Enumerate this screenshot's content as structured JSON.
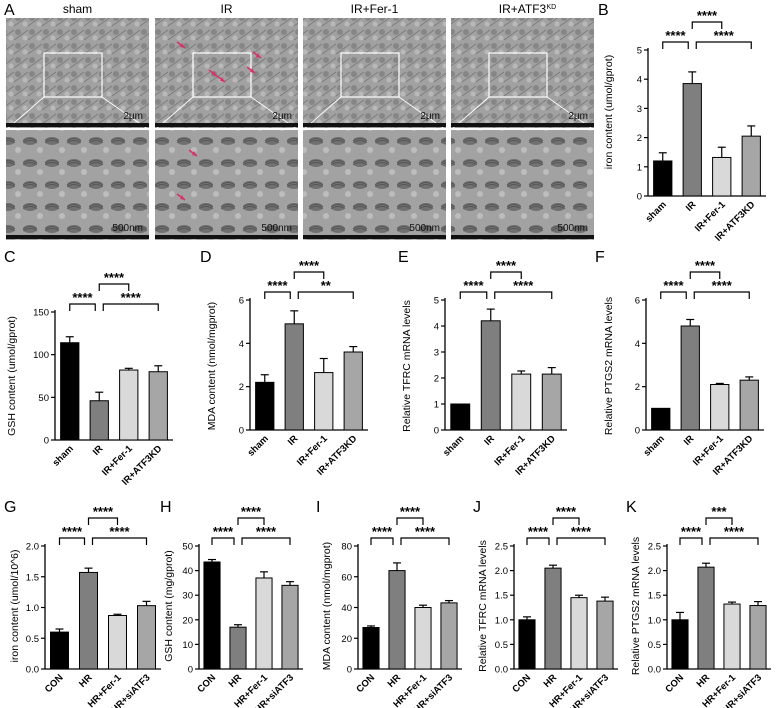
{
  "tem": {
    "groups": [
      "sham",
      "IR",
      "IR+Fer-1",
      "IR+ATF3"
    ],
    "group_superscript": "KD",
    "top_scale": [
      "2μm",
      "2μm",
      "2μm",
      "2μm"
    ],
    "bottom_scale": [
      "500nm",
      "500nm",
      "500nm",
      "500nm"
    ],
    "arrow_color": "#d6336c"
  },
  "colors": {
    "black": "#000000",
    "dark_gray": "#7f7f7f",
    "light_gray": "#d9d9d9",
    "mid_gray": "#a6a6a6"
  },
  "chart_data": [
    {
      "panel": "B",
      "type": "bar",
      "categories": [
        "sham",
        "IR",
        "IR+Fer-1",
        "IR+ATF3KD"
      ],
      "values": [
        1.2,
        3.85,
        1.32,
        2.05
      ],
      "errors": [
        0.28,
        0.4,
        0.35,
        0.35
      ],
      "ylabel": "iron content (umol/gprot)",
      "ylim": [
        0,
        5
      ],
      "yticks": [
        "0",
        "1",
        "2",
        "3",
        "4",
        "5"
      ],
      "sig": [
        {
          "from": 1,
          "to": 2,
          "label": "****"
        },
        {
          "from": 0,
          "to": 1,
          "label": "****"
        },
        {
          "from": 1,
          "to": 3,
          "label": "****"
        }
      ]
    },
    {
      "panel": "C",
      "type": "bar",
      "categories": [
        "sham",
        "IR",
        "IR+Fer-1",
        "IR+ATF3KD"
      ],
      "values": [
        114,
        46,
        82,
        80
      ],
      "errors": [
        7,
        10,
        2,
        7
      ],
      "ylabel": "GSH content (umol/gprot)",
      "ylim": [
        0,
        150
      ],
      "yticks": [
        "0",
        "50",
        "100",
        "150"
      ],
      "sig": [
        {
          "from": 1,
          "to": 2,
          "label": "****"
        },
        {
          "from": 0,
          "to": 1,
          "label": "****"
        },
        {
          "from": 1,
          "to": 3,
          "label": "****"
        }
      ]
    },
    {
      "panel": "D",
      "type": "bar",
      "categories": [
        "sham",
        "IR",
        "IR+Fer-1",
        "IR+ATF3KD"
      ],
      "values": [
        2.2,
        4.9,
        2.65,
        3.6
      ],
      "errors": [
        0.35,
        0.6,
        0.65,
        0.25
      ],
      "ylabel": "MDA content (nmol/mgprot)",
      "ylim": [
        0,
        6
      ],
      "yticks": [
        "0",
        "2",
        "4",
        "6"
      ],
      "sig": [
        {
          "from": 1,
          "to": 2,
          "label": "****"
        },
        {
          "from": 0,
          "to": 1,
          "label": "****"
        },
        {
          "from": 1,
          "to": 3,
          "label": "**"
        }
      ]
    },
    {
      "panel": "E",
      "type": "bar",
      "categories": [
        "sham",
        "IR",
        "IR+Fer-1",
        "IR+ATF3KD"
      ],
      "values": [
        1.0,
        4.2,
        2.15,
        2.15
      ],
      "errors": [
        0.0,
        0.45,
        0.12,
        0.25
      ],
      "ylabel": "Relative TFRC mRNA levels",
      "ylim": [
        0,
        5
      ],
      "yticks": [
        "0",
        "1",
        "2",
        "3",
        "4",
        "5"
      ],
      "sig": [
        {
          "from": 1,
          "to": 2,
          "label": "****"
        },
        {
          "from": 0,
          "to": 1,
          "label": "****"
        },
        {
          "from": 1,
          "to": 3,
          "label": "****"
        }
      ]
    },
    {
      "panel": "F",
      "type": "bar",
      "categories": [
        "sham",
        "IR",
        "IR+Fer-1",
        "IR+ATF3KD"
      ],
      "values": [
        1.0,
        4.8,
        2.1,
        2.3
      ],
      "errors": [
        0.0,
        0.3,
        0.05,
        0.15
      ],
      "ylabel": "Relative PTGS2 mRNA levels",
      "ylim": [
        0,
        6
      ],
      "yticks": [
        "0",
        "2",
        "4",
        "6"
      ],
      "sig": [
        {
          "from": 1,
          "to": 2,
          "label": "****"
        },
        {
          "from": 0,
          "to": 1,
          "label": "****"
        },
        {
          "from": 1,
          "to": 3,
          "label": "****"
        }
      ]
    },
    {
      "panel": "G",
      "type": "bar",
      "categories": [
        "CON",
        "HR",
        "HR+Fer-1",
        "HR+siATF3"
      ],
      "values": [
        0.6,
        1.57,
        0.87,
        1.03
      ],
      "errors": [
        0.05,
        0.07,
        0.02,
        0.07
      ],
      "ylabel": "iron content (umol/10^6)",
      "ylim": [
        0,
        2.0
      ],
      "yticks": [
        "0.0",
        "0.5",
        "1.0",
        "1.5",
        "2.0"
      ],
      "sig": [
        {
          "from": 1,
          "to": 2,
          "label": "****"
        },
        {
          "from": 0,
          "to": 1,
          "label": "****"
        },
        {
          "from": 1,
          "to": 3,
          "label": "****"
        }
      ]
    },
    {
      "panel": "H",
      "type": "bar",
      "categories": [
        "CON",
        "HR",
        "HR+Fer-1",
        "HR+siATF3"
      ],
      "values": [
        43.5,
        17,
        37,
        34
      ],
      "errors": [
        1,
        1,
        2.5,
        1.5
      ],
      "ylabel": "GSH content (mg/gprot)",
      "ylim": [
        0,
        50
      ],
      "yticks": [
        "0",
        "10",
        "20",
        "30",
        "40",
        "50"
      ],
      "sig": [
        {
          "from": 1,
          "to": 2,
          "label": "****"
        },
        {
          "from": 0,
          "to": 1,
          "label": "****"
        },
        {
          "from": 1,
          "to": 3,
          "label": "****"
        }
      ]
    },
    {
      "panel": "I",
      "type": "bar",
      "categories": [
        "CON",
        "HR",
        "HR+Fer-1",
        "HR+siATF3"
      ],
      "values": [
        27,
        64,
        40,
        43
      ],
      "errors": [
        1,
        5,
        1.5,
        1.5
      ],
      "ylabel": "MDA content (nmol/mgprot)",
      "ylim": [
        0,
        80
      ],
      "yticks": [
        "0",
        "20",
        "40",
        "60",
        "80"
      ],
      "sig": [
        {
          "from": 1,
          "to": 2,
          "label": "****"
        },
        {
          "from": 0,
          "to": 1,
          "label": "****"
        },
        {
          "from": 1,
          "to": 3,
          "label": "****"
        }
      ]
    },
    {
      "panel": "J",
      "type": "bar",
      "categories": [
        "CON",
        "HR",
        "HR+Fer-1",
        "HR+siATF3"
      ],
      "values": [
        1.0,
        2.05,
        1.45,
        1.38
      ],
      "errors": [
        0.06,
        0.06,
        0.05,
        0.08
      ],
      "ylabel": "Relative TFRC mRNA levels",
      "ylim": [
        0,
        2.5
      ],
      "yticks": [
        "0.0",
        "0.5",
        "1.0",
        "1.5",
        "2.0",
        "2.5"
      ],
      "sig": [
        {
          "from": 1,
          "to": 2,
          "label": "****"
        },
        {
          "from": 0,
          "to": 1,
          "label": "****"
        },
        {
          "from": 1,
          "to": 3,
          "label": "****"
        }
      ]
    },
    {
      "panel": "K",
      "type": "bar",
      "categories": [
        "CON",
        "HR",
        "HR+Fer-1",
        "HR+siATF3"
      ],
      "values": [
        1.0,
        2.07,
        1.32,
        1.29
      ],
      "errors": [
        0.15,
        0.08,
        0.04,
        0.08
      ],
      "ylabel": "Relative PTGS2 mRNA levels",
      "ylim": [
        0,
        2.5
      ],
      "yticks": [
        "0.0",
        "0.5",
        "1.0",
        "1.5",
        "2.0",
        "2.5"
      ],
      "sig": [
        {
          "from": 1,
          "to": 2,
          "label": "***"
        },
        {
          "from": 0,
          "to": 1,
          "label": "****"
        },
        {
          "from": 1,
          "to": 3,
          "label": "****"
        }
      ]
    }
  ]
}
